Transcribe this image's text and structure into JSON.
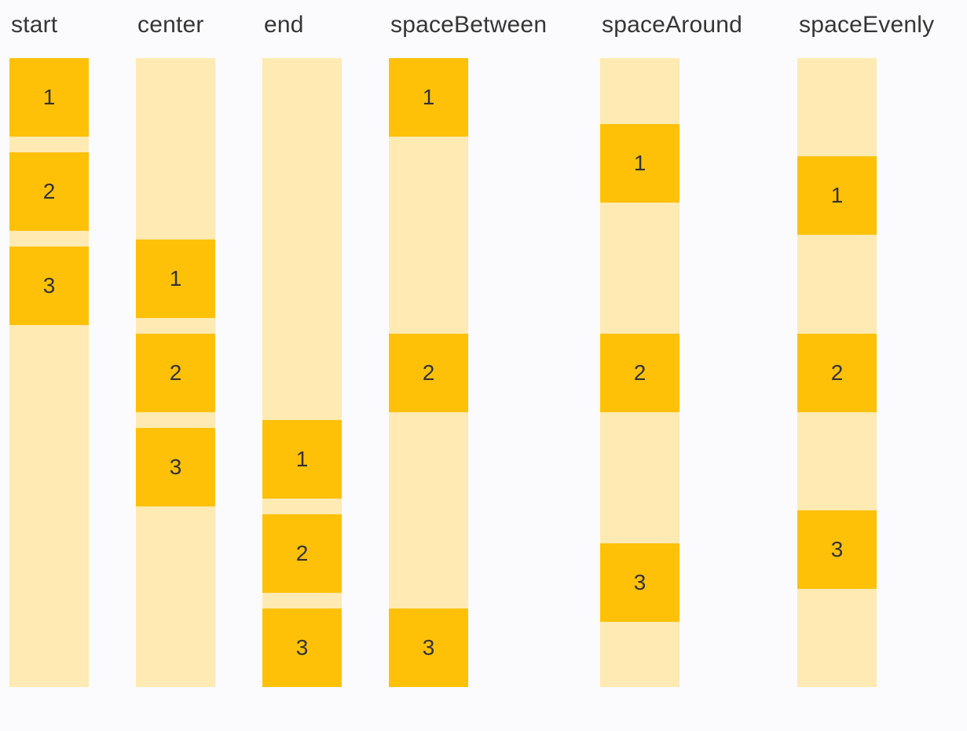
{
  "colors": {
    "box_fill": "#FEC108",
    "track_fill": "#FFEAB3",
    "label_text": "#363636",
    "item_text": "#333333",
    "page_background": "#FBFBFE"
  },
  "columns": [
    {
      "label": "start",
      "justify": "start",
      "boxes": [
        "1",
        "2",
        "3"
      ]
    },
    {
      "label": "center",
      "justify": "center",
      "boxes": [
        "1",
        "2",
        "3"
      ]
    },
    {
      "label": "end",
      "justify": "end",
      "boxes": [
        "1",
        "2",
        "3"
      ]
    },
    {
      "label": "spaceBetween",
      "justify": "spaceBetween",
      "boxes": [
        "1",
        "2",
        "3"
      ]
    },
    {
      "label": "spaceAround",
      "justify": "spaceAround",
      "boxes": [
        "1",
        "2",
        "3"
      ]
    },
    {
      "label": "spaceEvenly",
      "justify": "spaceEvenly",
      "boxes": [
        "1",
        "2",
        "3"
      ]
    }
  ]
}
